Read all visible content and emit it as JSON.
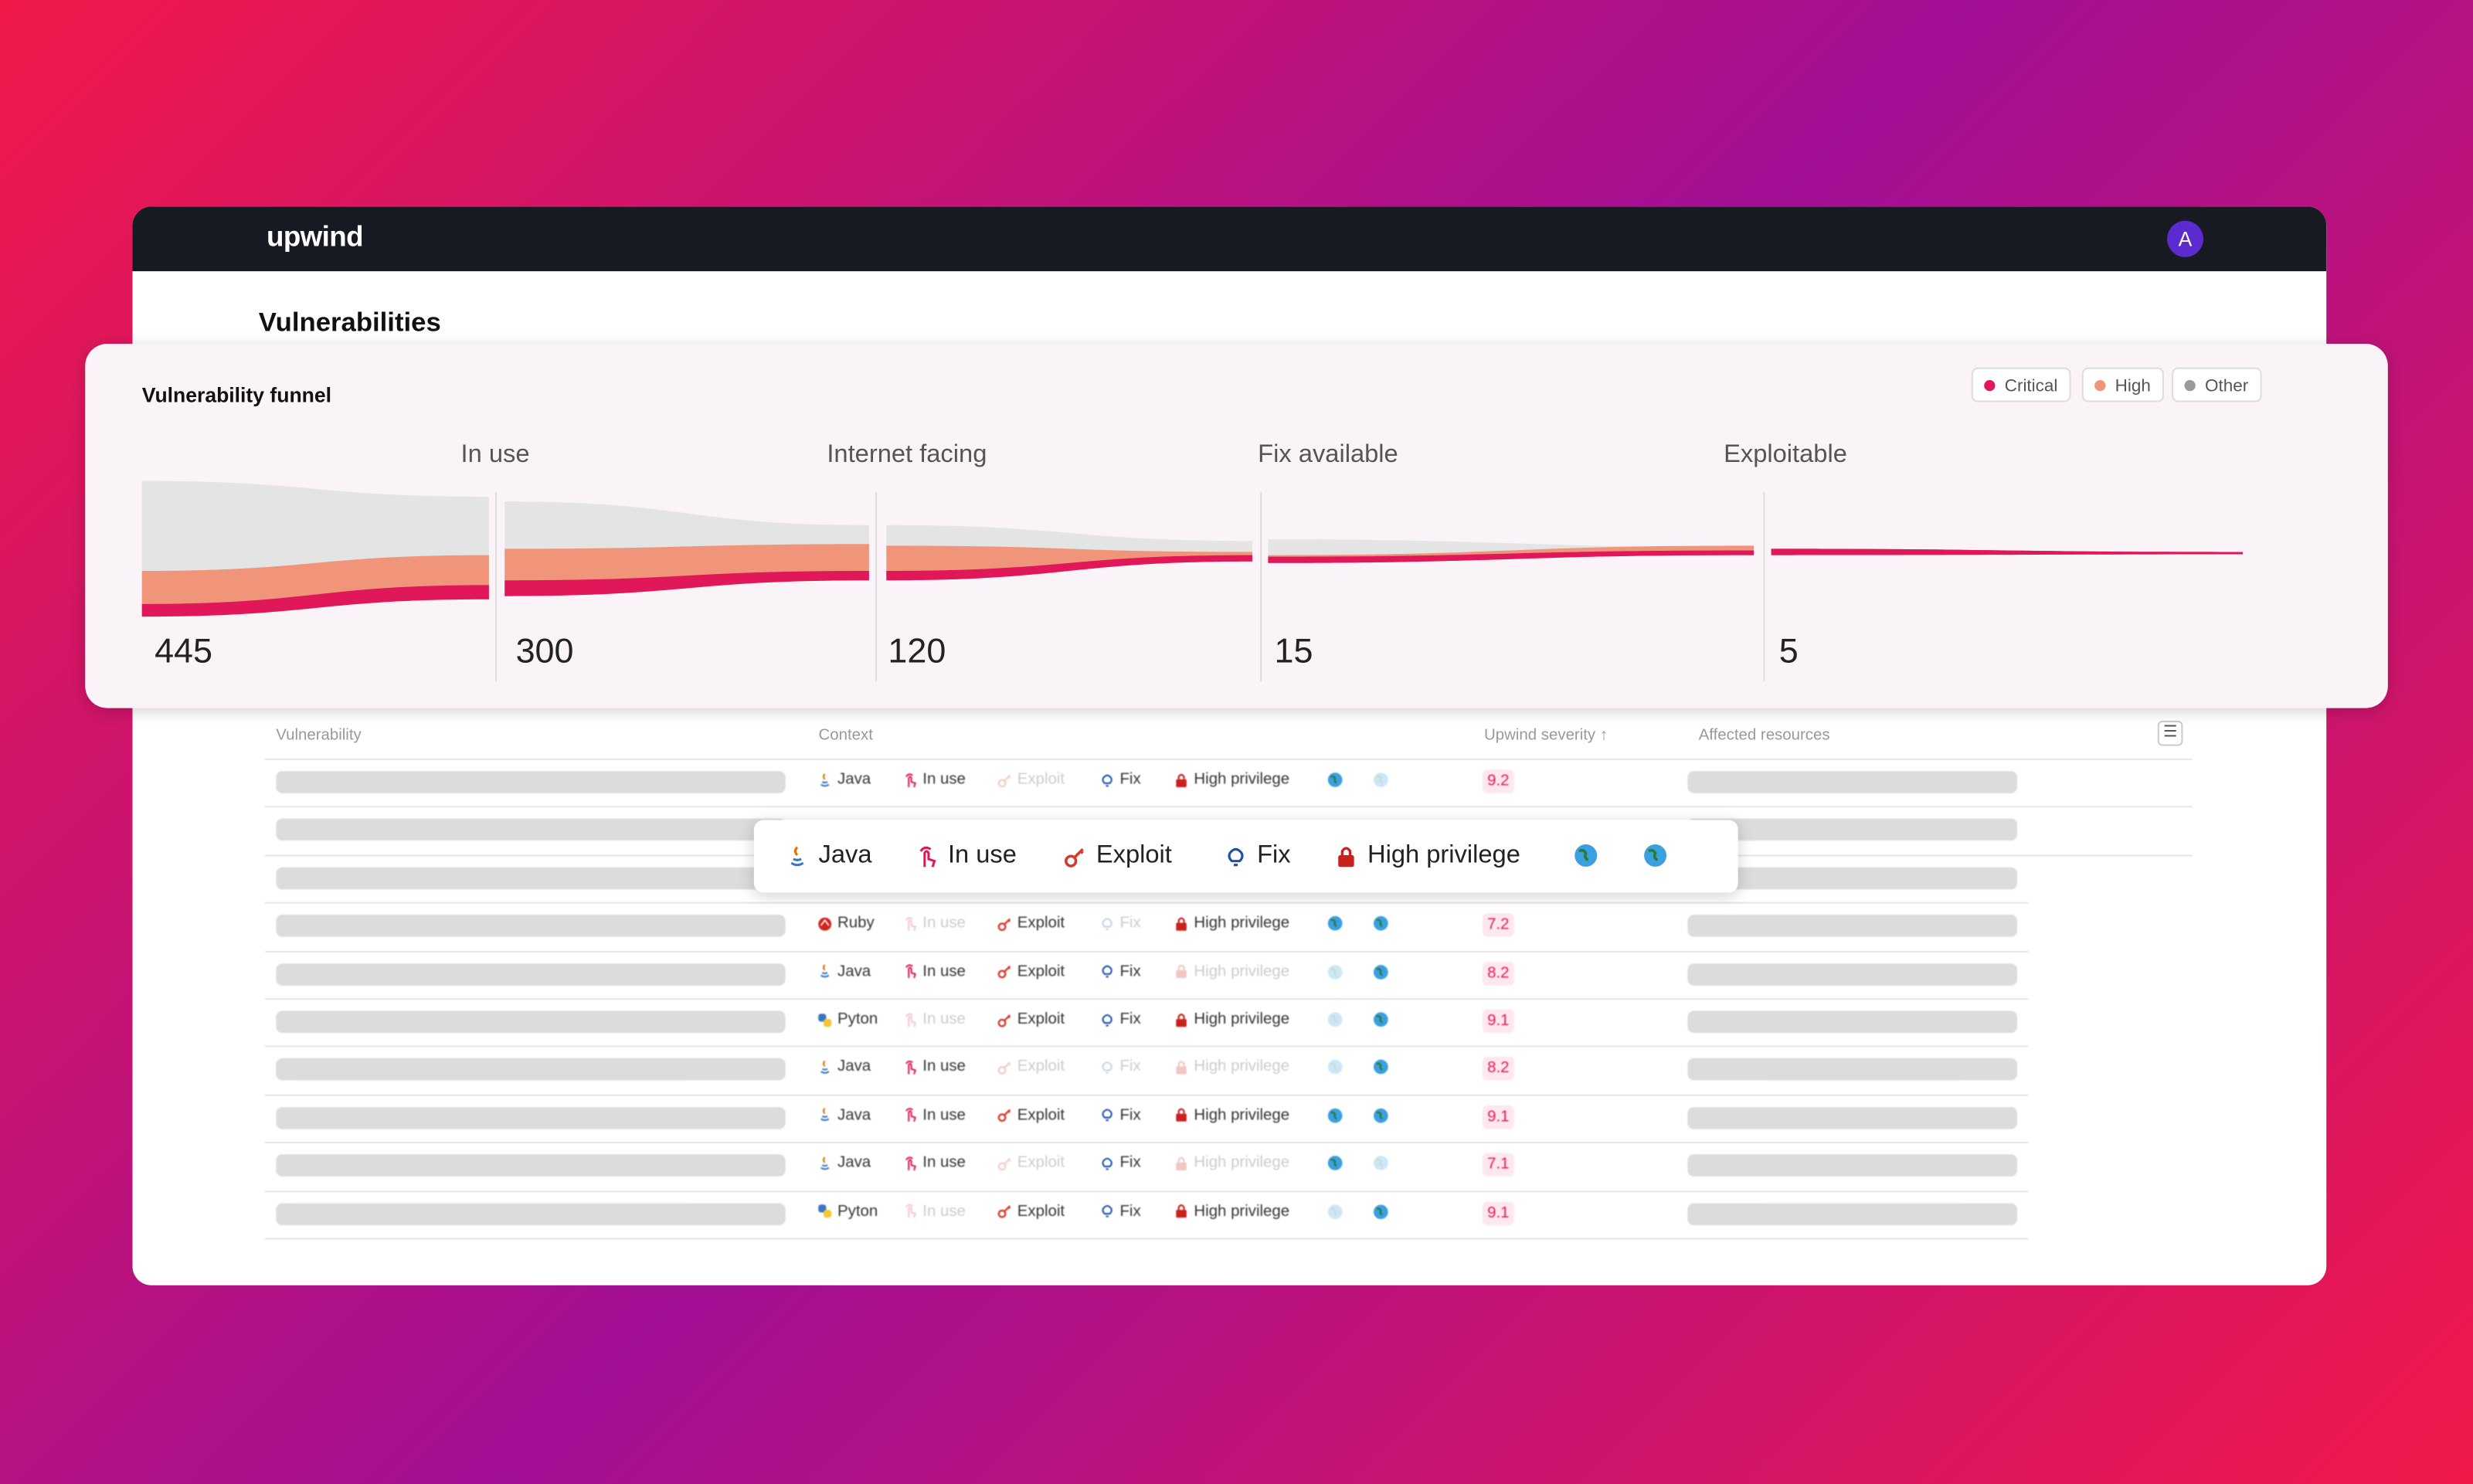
{
  "header": {
    "logo": "upwind",
    "avatar": "A"
  },
  "page": {
    "title": "Vulnerabilities"
  },
  "funnel": {
    "title": "Vulnerability funnel",
    "legend": [
      {
        "label": "Critical",
        "color": "#e0185a"
      },
      {
        "label": "High",
        "color": "#f0957a"
      },
      {
        "label": "Other",
        "color": "#9a9a9a"
      }
    ],
    "stages": [
      {
        "value": 445
      },
      {
        "label": "In use",
        "value": 300
      },
      {
        "label": "Internet facing",
        "value": 120
      },
      {
        "label": "Fix available",
        "value": 15
      },
      {
        "label": "Exploitable",
        "value": 5
      }
    ]
  },
  "table": {
    "columns": [
      "Vulnerability",
      "Context",
      "Upwind severity ↑",
      "Affected resources"
    ],
    "rows": [
      {
        "language": "Java",
        "tags": [
          {
            "label": "In use",
            "active": true
          },
          {
            "label": "Exploit",
            "active": false
          },
          {
            "label": "Fix",
            "active": true
          },
          {
            "label": "High privilege",
            "active": true
          }
        ],
        "globes": [
          true,
          false
        ],
        "severity": 9.2
      },
      {
        "language": "Ruby",
        "tags": [
          {
            "label": "In use",
            "active": false
          },
          {
            "label": "Exploit",
            "active": true
          },
          {
            "label": "Fix",
            "active": false
          },
          {
            "label": "High privilege",
            "active": true
          }
        ],
        "globes": [
          true,
          true
        ],
        "severity": 7.2
      },
      {
        "language": "Java",
        "tags": [
          {
            "label": "In use",
            "active": true
          },
          {
            "label": "Exploit",
            "active": true
          },
          {
            "label": "Fix",
            "active": true
          },
          {
            "label": "High privilege",
            "active": false
          }
        ],
        "globes": [
          false,
          true
        ],
        "severity": 8.2
      },
      {
        "language": "Pyton",
        "tags": [
          {
            "label": "In use",
            "active": false
          },
          {
            "label": "Exploit",
            "active": true
          },
          {
            "label": "Fix",
            "active": true
          },
          {
            "label": "High privilege",
            "active": true
          }
        ],
        "globes": [
          false,
          true
        ],
        "severity": 9.1
      },
      {
        "language": "Java",
        "tags": [
          {
            "label": "In use",
            "active": true
          },
          {
            "label": "Exploit",
            "active": false
          },
          {
            "label": "Fix",
            "active": false
          },
          {
            "label": "High privilege",
            "active": false
          }
        ],
        "globes": [
          false,
          true
        ],
        "severity": 8.2
      },
      {
        "language": "Java",
        "tags": [
          {
            "label": "In use",
            "active": true
          },
          {
            "label": "Exploit",
            "active": true
          },
          {
            "label": "Fix",
            "active": true
          },
          {
            "label": "High privilege",
            "active": true
          }
        ],
        "globes": [
          true,
          true
        ],
        "severity": 9.1
      },
      {
        "language": "Java",
        "tags": [
          {
            "label": "In use",
            "active": true
          },
          {
            "label": "Exploit",
            "active": false
          },
          {
            "label": "Fix",
            "active": true
          },
          {
            "label": "High privilege",
            "active": false
          }
        ],
        "globes": [
          true,
          false
        ],
        "severity": 7.1
      },
      {
        "language": "Pyton",
        "tags": [
          {
            "label": "In use",
            "active": false
          },
          {
            "label": "Exploit",
            "active": true
          },
          {
            "label": "Fix",
            "active": true
          },
          {
            "label": "High privilege",
            "active": true
          }
        ],
        "globes": [
          false,
          true
        ],
        "severity": 9.1
      }
    ]
  },
  "popup": {
    "items": [
      "Java",
      "In use",
      "Exploit",
      "Fix",
      "High privilege"
    ]
  }
}
